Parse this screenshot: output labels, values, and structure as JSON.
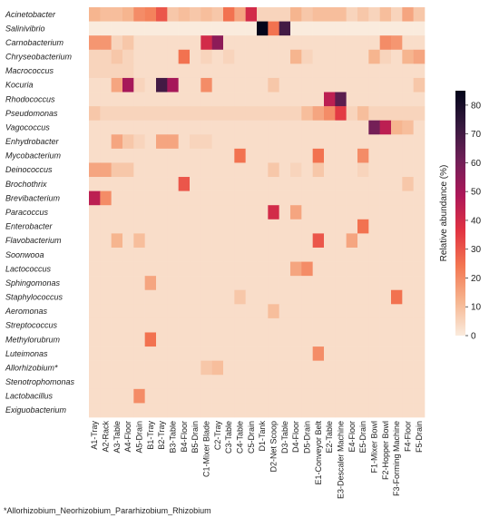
{
  "chart_data": {
    "type": "heatmap",
    "rows": [
      "Acinetobacter",
      "Salinivibrio",
      "Carnobacterium",
      "Chryseobacterium",
      "Macrococcus",
      "Kocuria",
      "Rhodococcus",
      "Pseudomonas",
      "Vagococcus",
      "Enhydrobacter",
      "Mycobacterium",
      "Deinococcus",
      "Brochothrix",
      "Brevibacterium",
      "Paracoccus",
      "Enterobacter",
      "Flavobacterium",
      "Soonwooa",
      "Lactococcus",
      "Sphingomonas",
      "Staphylococcus",
      "Aeromonas",
      "Streptococcus",
      "Methylorubrum",
      "Luteimonas",
      "Allorhizobium*",
      "Stenotrophomonas",
      "Lactobacillus",
      "Exiguobacterium"
    ],
    "columns": [
      "A1-Tray",
      "A2-Rack",
      "A3-Table",
      "A4-Floor",
      "A5-Drain",
      "B1-Tray",
      "B2-Tray",
      "B3-Table",
      "B4-Floor",
      "B5-Drain",
      "C1-Mixer Blade",
      "C2-Tray",
      "C3-Table",
      "C4-Table",
      "C5-Drain",
      "D1-Tank",
      "D2-Net Scoop",
      "D3-Table",
      "D4-Floor",
      "D5-Drain",
      "E1-Conveyor Belt",
      "E2-Table",
      "E3-Descaler Machine",
      "E4-Floor",
      "E5-Drain",
      "F1-Mixer Bowl",
      "F2-Hopper Bowl",
      "F3-Forming Machine",
      "F4-Floor",
      "F5-Drain"
    ],
    "values": [
      [
        12,
        10,
        10,
        12,
        20,
        22,
        30,
        8,
        10,
        8,
        10,
        8,
        25,
        15,
        40,
        5,
        5,
        5,
        12,
        8,
        10,
        10,
        10,
        5,
        8,
        5,
        10,
        5,
        15,
        8
      ],
      [
        0,
        0,
        0,
        0,
        0,
        0,
        0,
        0,
        0,
        0,
        0,
        0,
        0,
        0,
        0,
        85,
        25,
        70,
        0,
        0,
        0,
        0,
        0,
        0,
        0,
        0,
        0,
        0,
        0,
        0
      ],
      [
        18,
        18,
        5,
        8,
        3,
        3,
        3,
        3,
        3,
        3,
        40,
        55,
        3,
        3,
        3,
        3,
        3,
        3,
        3,
        3,
        3,
        3,
        3,
        3,
        3,
        3,
        20,
        18,
        3,
        3
      ],
      [
        5,
        5,
        8,
        5,
        3,
        3,
        3,
        3,
        25,
        3,
        5,
        3,
        5,
        3,
        3,
        3,
        3,
        3,
        12,
        5,
        3,
        3,
        3,
        3,
        3,
        12,
        5,
        3,
        12,
        15
      ],
      [
        5,
        5,
        5,
        5,
        3,
        3,
        3,
        3,
        3,
        3,
        3,
        3,
        3,
        3,
        3,
        3,
        3,
        3,
        3,
        3,
        3,
        3,
        3,
        3,
        3,
        3,
        3,
        3,
        3,
        3
      ],
      [
        3,
        3,
        15,
        50,
        5,
        3,
        70,
        50,
        3,
        3,
        20,
        3,
        3,
        3,
        3,
        3,
        8,
        3,
        3,
        3,
        3,
        3,
        3,
        3,
        3,
        3,
        3,
        3,
        3,
        8
      ],
      [
        3,
        3,
        3,
        3,
        3,
        3,
        3,
        3,
        3,
        3,
        3,
        3,
        3,
        3,
        3,
        3,
        3,
        3,
        3,
        3,
        3,
        45,
        65,
        3,
        3,
        3,
        3,
        3,
        3,
        3
      ],
      [
        8,
        5,
        5,
        5,
        5,
        5,
        5,
        5,
        5,
        5,
        5,
        5,
        5,
        5,
        5,
        5,
        5,
        5,
        5,
        10,
        15,
        20,
        35,
        5,
        10,
        5,
        5,
        5,
        5,
        5
      ],
      [
        3,
        3,
        3,
        3,
        3,
        3,
        3,
        3,
        3,
        3,
        3,
        3,
        3,
        3,
        3,
        3,
        3,
        3,
        3,
        3,
        3,
        3,
        3,
        3,
        3,
        60,
        45,
        12,
        10,
        3
      ],
      [
        3,
        3,
        15,
        8,
        5,
        3,
        15,
        15,
        3,
        5,
        5,
        3,
        3,
        3,
        3,
        3,
        3,
        3,
        3,
        3,
        3,
        3,
        3,
        3,
        3,
        3,
        3,
        3,
        3,
        3
      ],
      [
        3,
        3,
        3,
        3,
        3,
        3,
        3,
        3,
        3,
        3,
        3,
        3,
        3,
        25,
        3,
        3,
        3,
        3,
        3,
        3,
        25,
        3,
        3,
        3,
        20,
        3,
        3,
        3,
        3,
        3
      ],
      [
        15,
        15,
        8,
        8,
        3,
        3,
        3,
        3,
        3,
        3,
        3,
        3,
        3,
        3,
        3,
        3,
        8,
        3,
        5,
        3,
        8,
        3,
        3,
        3,
        5,
        3,
        3,
        3,
        3,
        3
      ],
      [
        3,
        3,
        3,
        3,
        3,
        3,
        3,
        3,
        30,
        3,
        3,
        3,
        3,
        3,
        3,
        3,
        3,
        3,
        3,
        3,
        3,
        3,
        3,
        3,
        3,
        3,
        3,
        3,
        8,
        3
      ],
      [
        45,
        20,
        3,
        3,
        3,
        3,
        3,
        3,
        3,
        3,
        3,
        3,
        3,
        3,
        3,
        3,
        3,
        3,
        3,
        3,
        3,
        3,
        3,
        3,
        3,
        3,
        3,
        3,
        3,
        3
      ],
      [
        3,
        3,
        3,
        3,
        3,
        3,
        3,
        3,
        3,
        3,
        3,
        3,
        3,
        3,
        3,
        3,
        40,
        3,
        15,
        3,
        3,
        3,
        3,
        3,
        3,
        3,
        3,
        3,
        3,
        3
      ],
      [
        3,
        3,
        3,
        3,
        3,
        3,
        3,
        3,
        3,
        3,
        3,
        3,
        3,
        3,
        3,
        3,
        3,
        3,
        3,
        3,
        3,
        3,
        3,
        3,
        25,
        3,
        3,
        3,
        3,
        3
      ],
      [
        3,
        3,
        12,
        3,
        10,
        3,
        3,
        3,
        3,
        3,
        3,
        3,
        3,
        3,
        3,
        3,
        3,
        3,
        3,
        3,
        30,
        3,
        3,
        15,
        3,
        3,
        3,
        3,
        3,
        3
      ],
      [
        3,
        3,
        3,
        3,
        3,
        3,
        3,
        3,
        3,
        3,
        3,
        3,
        3,
        3,
        3,
        3,
        3,
        3,
        3,
        3,
        3,
        3,
        3,
        3,
        3,
        3,
        3,
        3,
        3,
        3
      ],
      [
        3,
        3,
        3,
        3,
        3,
        3,
        3,
        3,
        3,
        3,
        3,
        3,
        3,
        3,
        3,
        3,
        3,
        3,
        15,
        20,
        3,
        3,
        3,
        3,
        3,
        3,
        3,
        3,
        3,
        3
      ],
      [
        3,
        3,
        3,
        3,
        3,
        15,
        3,
        3,
        3,
        3,
        3,
        3,
        3,
        3,
        3,
        3,
        3,
        3,
        3,
        3,
        3,
        3,
        3,
        3,
        3,
        3,
        3,
        3,
        3,
        3
      ],
      [
        3,
        3,
        3,
        3,
        3,
        3,
        3,
        3,
        3,
        3,
        3,
        3,
        3,
        8,
        3,
        3,
        3,
        3,
        3,
        3,
        3,
        3,
        3,
        3,
        3,
        3,
        3,
        25,
        3,
        3
      ],
      [
        3,
        3,
        3,
        3,
        3,
        3,
        3,
        3,
        3,
        3,
        3,
        3,
        3,
        3,
        3,
        3,
        10,
        3,
        3,
        3,
        3,
        3,
        3,
        3,
        3,
        3,
        3,
        3,
        3,
        3
      ],
      [
        3,
        3,
        3,
        3,
        3,
        3,
        3,
        3,
        3,
        3,
        3,
        3,
        3,
        3,
        3,
        3,
        3,
        3,
        3,
        3,
        3,
        3,
        3,
        3,
        3,
        3,
        3,
        3,
        3,
        3
      ],
      [
        3,
        3,
        3,
        3,
        3,
        25,
        3,
        3,
        3,
        3,
        3,
        3,
        3,
        3,
        3,
        3,
        3,
        3,
        3,
        3,
        3,
        3,
        3,
        3,
        3,
        3,
        3,
        3,
        3,
        3
      ],
      [
        3,
        3,
        3,
        3,
        3,
        3,
        3,
        3,
        3,
        3,
        3,
        3,
        3,
        3,
        3,
        3,
        3,
        3,
        3,
        3,
        20,
        3,
        3,
        3,
        3,
        3,
        3,
        3,
        3,
        3
      ],
      [
        3,
        3,
        3,
        3,
        3,
        3,
        3,
        3,
        3,
        3,
        8,
        10,
        3,
        3,
        3,
        3,
        3,
        3,
        3,
        3,
        3,
        3,
        3,
        3,
        3,
        3,
        3,
        3,
        3,
        3
      ],
      [
        3,
        3,
        3,
        3,
        3,
        3,
        3,
        3,
        3,
        3,
        3,
        3,
        3,
        3,
        3,
        3,
        3,
        3,
        3,
        3,
        3,
        3,
        3,
        3,
        3,
        3,
        3,
        3,
        3,
        3
      ],
      [
        3,
        3,
        3,
        3,
        20,
        3,
        3,
        3,
        3,
        3,
        3,
        3,
        3,
        3,
        3,
        3,
        3,
        3,
        3,
        3,
        3,
        3,
        3,
        3,
        3,
        3,
        3,
        3,
        3,
        3
      ],
      [
        3,
        3,
        3,
        3,
        3,
        3,
        3,
        3,
        3,
        3,
        3,
        3,
        3,
        3,
        3,
        3,
        3,
        3,
        3,
        3,
        3,
        3,
        3,
        3,
        3,
        3,
        3,
        3,
        3,
        3
      ]
    ],
    "colorbar": {
      "label": "Relative abundance (%)",
      "ticks": [
        0,
        10,
        20,
        30,
        40,
        50,
        60,
        70,
        80
      ],
      "range": [
        0,
        85
      ]
    },
    "colors": [
      "#faebdd",
      "#f6b48e",
      "#f37651",
      "#e13342",
      "#ad1759",
      "#701f57",
      "#35193e",
      "#03051a"
    ]
  },
  "footnote": "*Allorhizobium_Neorhizobium_Pararhizobium_Rhizobium"
}
